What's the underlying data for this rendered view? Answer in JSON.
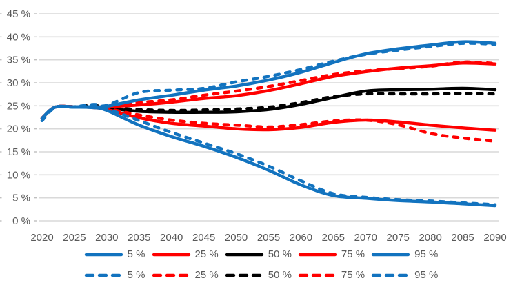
{
  "chart_data": {
    "type": "line",
    "title": "",
    "xlabel": "",
    "ylabel": "",
    "xlim": [
      2020,
      2090
    ],
    "ylim": [
      0,
      45
    ],
    "y_step": 5,
    "grid": "horizontal",
    "legend_position": "bottom",
    "axis_label_color": "#595959",
    "gridline_color": "#D9D9D9",
    "tick_color": "#BFBFBF",
    "x_tick_labels": [
      "2020",
      "2025",
      "2030",
      "2035",
      "2040",
      "2045",
      "2050",
      "2055",
      "2060",
      "2065",
      "2070",
      "2075",
      "2080",
      "2085",
      "2090"
    ],
    "y_tick_labels": [
      "0 %",
      "5 %",
      "10 %",
      "15 %",
      "20 %",
      "25 %",
      "30 %",
      "35 %",
      "40 %",
      "45 %"
    ],
    "x": [
      2020,
      2022,
      2025,
      2028,
      2030,
      2035,
      2040,
      2045,
      2050,
      2055,
      2060,
      2065,
      2070,
      2075,
      2080,
      2085,
      2090
    ],
    "series": [
      {
        "name": "5 %",
        "line_style": "solid",
        "color": "#1273BF",
        "values": [
          22.3,
          24.7,
          24.7,
          24.6,
          24.0,
          20.8,
          18.3,
          16.2,
          13.8,
          11.0,
          7.8,
          5.5,
          4.9,
          4.4,
          4.1,
          3.7,
          3.3
        ]
      },
      {
        "name": "25 %",
        "line_style": "solid",
        "color": "#FF0000",
        "values": [
          22.3,
          24.7,
          24.8,
          24.6,
          24.2,
          22.4,
          21.2,
          20.6,
          20.0,
          19.8,
          20.3,
          21.4,
          21.9,
          21.5,
          20.8,
          20.2,
          19.7
        ]
      },
      {
        "name": "50 %",
        "line_style": "solid",
        "color": "#000000",
        "values": [
          22.3,
          24.7,
          24.8,
          24.7,
          24.5,
          23.8,
          23.6,
          23.6,
          23.7,
          24.2,
          25.3,
          26.8,
          28.2,
          28.5,
          28.6,
          28.8,
          28.5
        ]
      },
      {
        "name": "75 %",
        "line_style": "solid",
        "color": "#FF0000",
        "values": [
          22.3,
          24.7,
          24.8,
          24.7,
          24.8,
          25.2,
          25.8,
          26.6,
          27.2,
          28.3,
          29.8,
          31.4,
          32.4,
          33.2,
          33.7,
          34.3,
          34.1
        ]
      },
      {
        "name": "95 %",
        "line_style": "solid",
        "color": "#1273BF",
        "values": [
          22.3,
          24.7,
          24.8,
          24.8,
          24.9,
          26.3,
          27.3,
          28.4,
          29.3,
          30.6,
          32.3,
          34.4,
          36.3,
          37.4,
          38.2,
          38.9,
          38.6
        ]
      },
      {
        "name": "5 %",
        "line_style": "dashed",
        "color": "#1273BF",
        "values": [
          21.8,
          24.6,
          24.7,
          24.7,
          24.3,
          21.8,
          19.2,
          16.9,
          14.6,
          11.9,
          8.7,
          5.9,
          5.1,
          4.6,
          4.3,
          3.9,
          3.5
        ]
      },
      {
        "name": "25 %",
        "line_style": "dashed",
        "color": "#FF0000",
        "values": [
          22.3,
          24.7,
          24.8,
          24.7,
          24.4,
          23.0,
          21.9,
          21.2,
          20.8,
          20.4,
          20.9,
          21.7,
          21.9,
          20.9,
          19.0,
          18.0,
          17.3
        ]
      },
      {
        "name": "50 %",
        "line_style": "dashed",
        "color": "#000000",
        "values": [
          22.3,
          24.7,
          24.8,
          25.1,
          24.7,
          24.2,
          24.0,
          24.1,
          24.3,
          24.7,
          25.7,
          27.0,
          27.6,
          27.6,
          27.6,
          27.7,
          27.6
        ]
      },
      {
        "name": "75 %",
        "line_style": "dashed",
        "color": "#FF0000",
        "values": [
          22.3,
          24.7,
          24.8,
          24.8,
          24.9,
          25.7,
          26.3,
          27.3,
          28.2,
          29.2,
          30.5,
          31.8,
          32.6,
          33.1,
          33.6,
          34.5,
          34.2
        ]
      },
      {
        "name": "95 %",
        "line_style": "dashed",
        "color": "#1273BF",
        "values": [
          21.8,
          24.6,
          24.8,
          25.3,
          25.1,
          27.9,
          28.4,
          28.8,
          30.2,
          31.4,
          32.9,
          34.7,
          36.2,
          37.1,
          37.9,
          38.6,
          38.4
        ]
      }
    ]
  }
}
